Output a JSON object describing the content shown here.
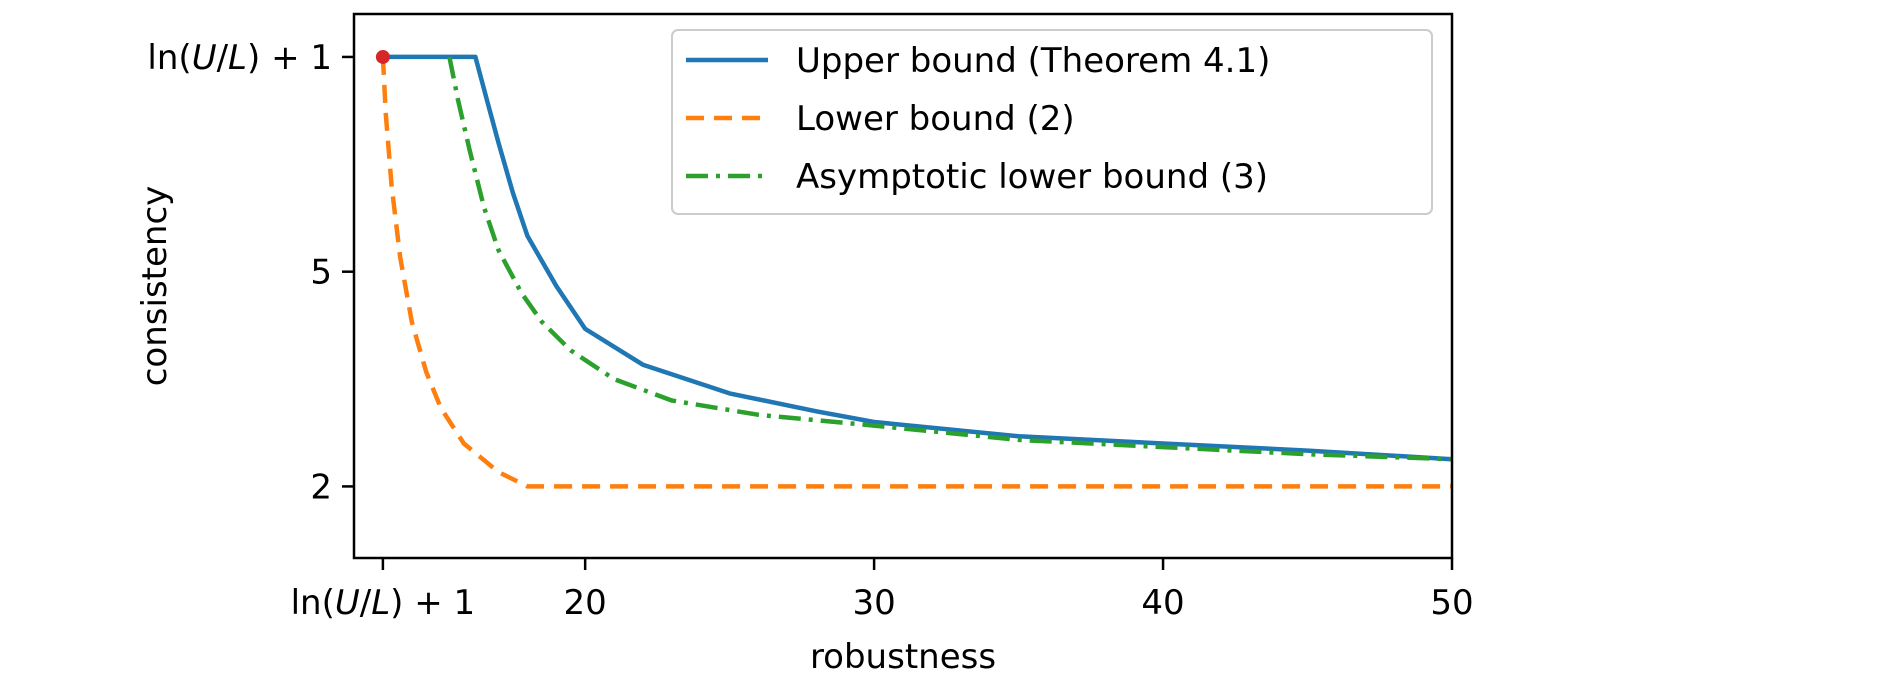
{
  "chart_data": {
    "type": "line",
    "title": "",
    "xlabel": "robustness",
    "ylabel": "consistency",
    "xlim": [
      12.0,
      50.0
    ],
    "ylim": [
      1.0,
      8.6
    ],
    "grid": false,
    "x_ticks": [
      {
        "value": 13.0,
        "label": "",
        "math": {
          "pre": "ln(",
          "var1": "U",
          "slash": "/",
          "var2": "L",
          "post": ") + 1"
        }
      },
      {
        "value": 20,
        "label": "20"
      },
      {
        "value": 30,
        "label": "30"
      },
      {
        "value": 40,
        "label": "40"
      },
      {
        "value": 50,
        "label": "50"
      }
    ],
    "y_ticks": [
      {
        "value": 2,
        "label": "2"
      },
      {
        "value": 5,
        "label": "5"
      },
      {
        "value": 8.0,
        "label": "",
        "math": {
          "pre": "ln(",
          "var1": "U",
          "slash": "/",
          "var2": "L",
          "post": ") + 1"
        }
      }
    ],
    "legend": {
      "position": "top-right",
      "entries": [
        {
          "label": "Upper bound (Theorem 4.1)",
          "color": "#1f77b4",
          "dash": "solid"
        },
        {
          "label": "Lower bound (2)",
          "color": "#ff7f0e",
          "dash": "dashed"
        },
        {
          "label": "Asymptotic lower bound (3)",
          "color": "#2ca02c",
          "dash": "dashdot"
        }
      ]
    },
    "series": [
      {
        "name": "Upper bound (Theorem 4.1)",
        "color": "#1f77b4",
        "x": [
          13.0,
          16.2,
          16.6,
          17.0,
          17.5,
          18.0,
          19.0,
          20.0,
          22.0,
          25.0,
          28.0,
          30.0,
          35.0,
          40.0,
          45.0,
          50.0
        ],
        "y": [
          8.0,
          8.0,
          7.4,
          6.8,
          6.1,
          5.5,
          4.8,
          4.2,
          3.7,
          3.3,
          3.05,
          2.9,
          2.7,
          2.6,
          2.5,
          2.38
        ]
      },
      {
        "name": "Lower bound (2)",
        "color": "#ff7f0e",
        "x": [
          13.0,
          13.1,
          13.3,
          13.6,
          14.0,
          14.5,
          15.0,
          15.8,
          17.0,
          18.0,
          50.0
        ],
        "y": [
          8.0,
          7.2,
          6.2,
          5.2,
          4.3,
          3.6,
          3.1,
          2.6,
          2.2,
          2.0,
          2.0
        ]
      },
      {
        "name": "Asymptotic lower bound (3)",
        "color": "#2ca02c",
        "x": [
          15.3,
          15.6,
          16.0,
          16.5,
          17.0,
          17.8,
          18.5,
          19.5,
          21.0,
          23.0,
          26.0,
          30.0,
          35.0,
          40.0,
          45.0,
          50.0
        ],
        "y": [
          8.0,
          7.4,
          6.7,
          5.9,
          5.3,
          4.7,
          4.3,
          3.9,
          3.5,
          3.2,
          3.0,
          2.85,
          2.65,
          2.55,
          2.45,
          2.38
        ]
      }
    ],
    "annotations": [
      {
        "type": "point",
        "x": 13.0,
        "y": 8.0,
        "color": "#d62728"
      }
    ]
  }
}
